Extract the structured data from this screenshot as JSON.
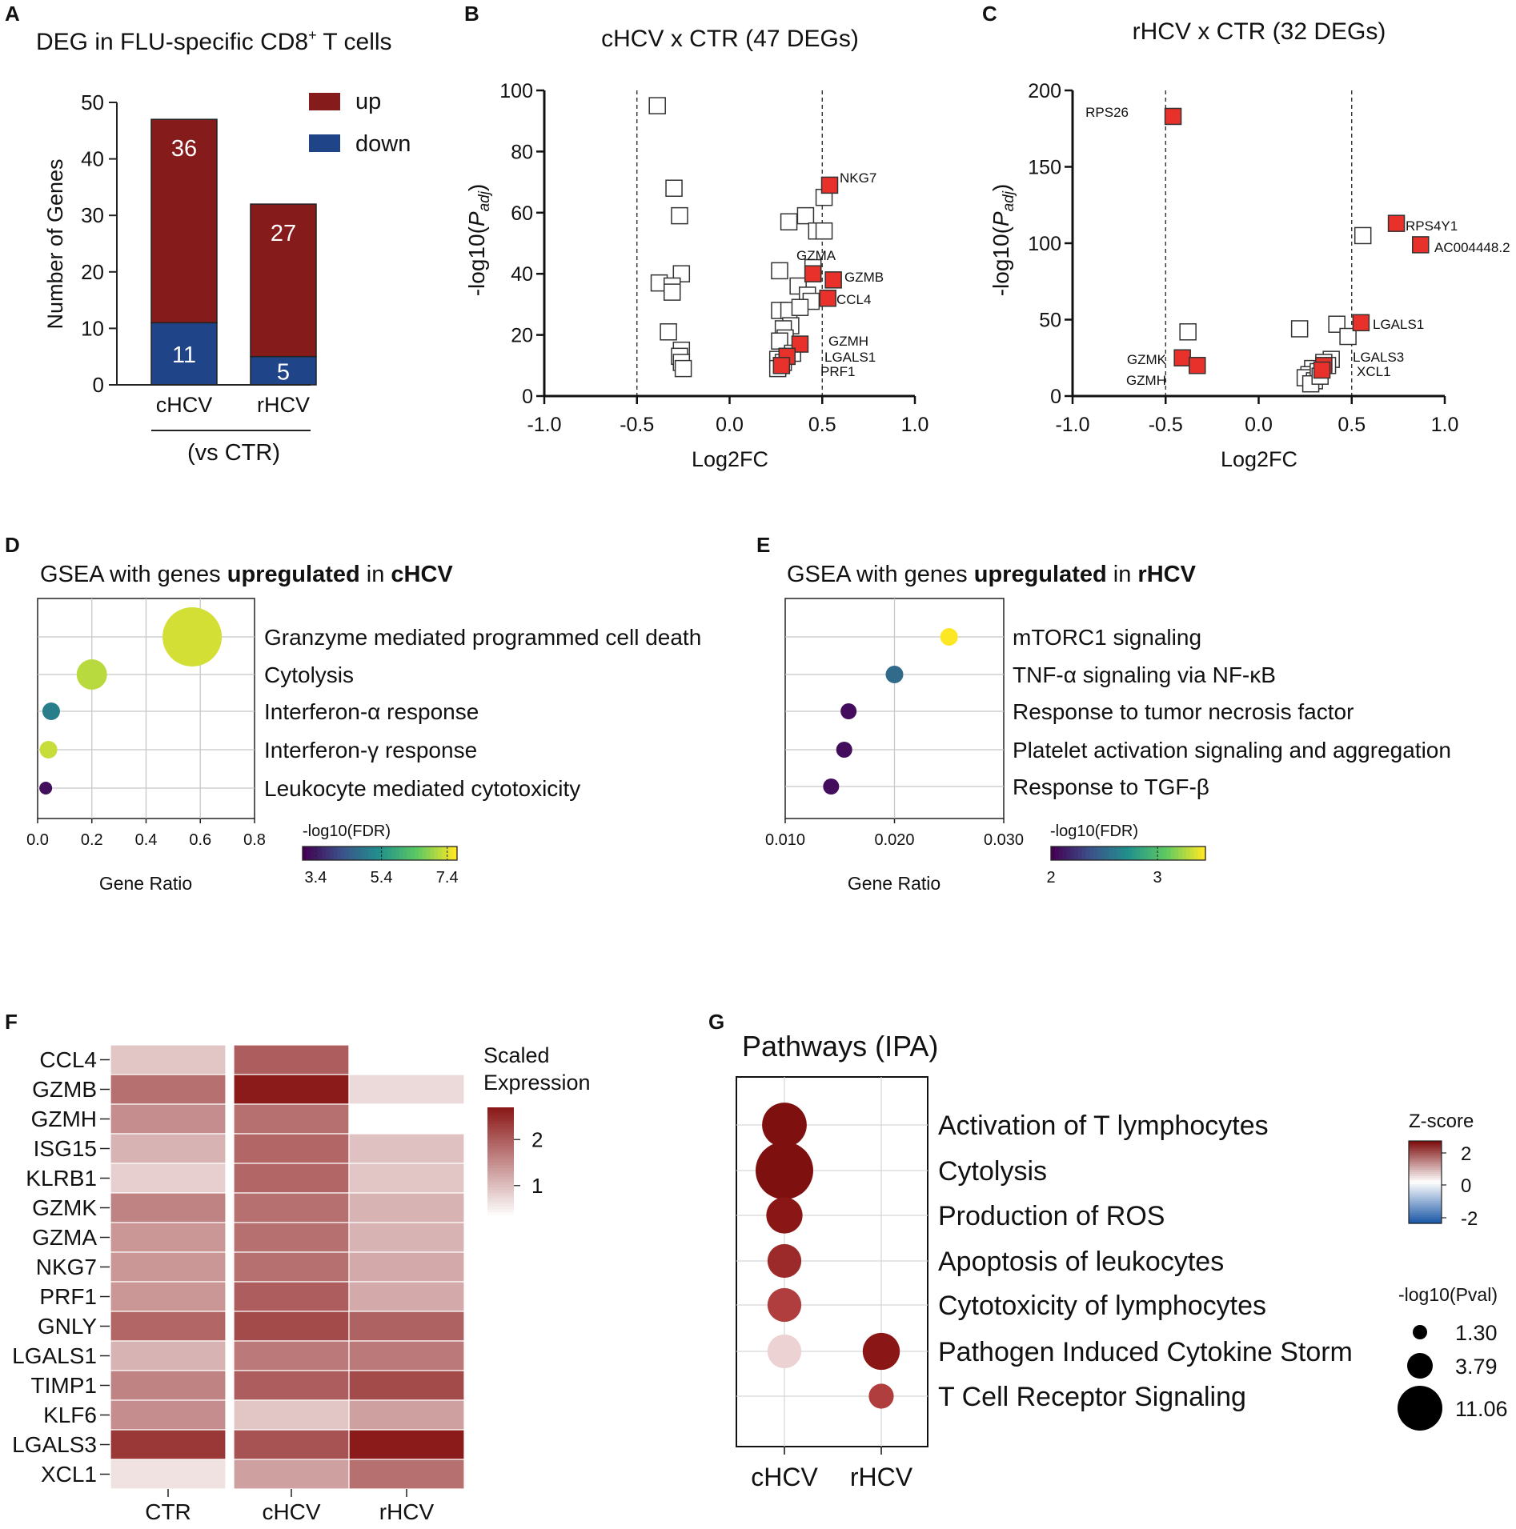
{
  "palette": {
    "up": "#861b1b",
    "down": "#1f4588",
    "highlight": "#e8312a",
    "ipa_high": "#7f1010",
    "ipa_mid": "#b03e3e",
    "ipa_light": "#ecd2d2",
    "ipa_low": "#1e5aa8",
    "heat_high": "#8b1a1a",
    "heat_low": "#ffffff"
  },
  "chart_data": [
    {
      "panel": "A",
      "type": "bar",
      "stacked": true,
      "title": "DEG in FLU-specific CD8",
      "title_sup": "+",
      "title_tail": " T cells",
      "ylabel": "Number of Genes",
      "xlabel": "(vs CTR)",
      "categories": [
        "cHCV",
        "rHCV"
      ],
      "series": [
        {
          "name": "down",
          "values": [
            11,
            5
          ]
        },
        {
          "name": "up",
          "values": [
            36,
            27
          ]
        }
      ],
      "ylim": [
        0,
        50
      ],
      "yticks": [
        "0",
        "10",
        "20",
        "30",
        "40",
        "50"
      ],
      "legend": [
        "up",
        "down"
      ]
    },
    {
      "panel": "B",
      "type": "scatter",
      "title": "cHCV x CTR (47 DEGs)",
      "xlabel": "Log2FC",
      "ylabel_main": "-log10(",
      "ylabel_p": "P",
      "ylabel_sub": "adj",
      "ylabel_end": ")",
      "xlim": [
        -1.0,
        1.0
      ],
      "ylim": [
        0,
        100
      ],
      "xticks": [
        "-1.0",
        "-0.5",
        "0.0",
        "0.5",
        "1.0"
      ],
      "yticks": [
        "0",
        "20",
        "40",
        "60",
        "80",
        "100"
      ],
      "thresholds": [
        -0.5,
        0.5
      ],
      "points": [
        [
          -0.39,
          95
        ],
        [
          -0.3,
          68
        ],
        [
          -0.27,
          59
        ],
        [
          -0.26,
          40
        ],
        [
          -0.38,
          37
        ],
        [
          -0.31,
          36
        ],
        [
          -0.31,
          34
        ],
        [
          -0.26,
          15
        ],
        [
          -0.27,
          13
        ],
        [
          -0.33,
          21
        ],
        [
          -0.26,
          11
        ],
        [
          -0.25,
          9
        ],
        [
          0.41,
          59
        ],
        [
          0.32,
          57
        ],
        [
          0.51,
          65
        ],
        [
          0.47,
          54
        ],
        [
          0.51,
          54
        ],
        [
          0.27,
          41
        ],
        [
          0.45,
          42
        ],
        [
          0.37,
          36
        ],
        [
          0.42,
          33
        ],
        [
          0.44,
          31
        ],
        [
          0.27,
          28
        ],
        [
          0.32,
          28
        ],
        [
          0.38,
          29
        ],
        [
          0.33,
          23
        ],
        [
          0.29,
          22
        ],
        [
          0.3,
          19
        ],
        [
          0.27,
          18
        ],
        [
          0.34,
          14
        ],
        [
          0.26,
          12
        ],
        [
          0.28,
          10
        ],
        [
          0.26,
          9
        ],
        [
          0.31,
          13
        ],
        [
          0.29,
          11
        ]
      ],
      "highlights": [
        {
          "x": 0.54,
          "y": 69,
          "label": "NKG7"
        },
        {
          "x": 0.45,
          "y": 40,
          "label": "GZMA"
        },
        {
          "x": 0.56,
          "y": 38,
          "label": "GZMB"
        },
        {
          "x": 0.53,
          "y": 32,
          "label": "CCL4"
        },
        {
          "x": 0.38,
          "y": 17,
          "label": "GZMH"
        },
        {
          "x": 0.31,
          "y": 13,
          "label": "LGALS1"
        },
        {
          "x": 0.28,
          "y": 10,
          "label": "PRF1"
        }
      ]
    },
    {
      "panel": "C",
      "type": "scatter",
      "title": "rHCV x CTR (32 DEGs)",
      "xlabel": "Log2FC",
      "ylabel_main": "-log10(",
      "ylabel_p": "P",
      "ylabel_sub": "adj",
      "ylabel_end": ")",
      "xlim": [
        -1.0,
        1.0
      ],
      "ylim": [
        0,
        200
      ],
      "xticks": [
        "-1.0",
        "-0.5",
        "0.0",
        "0.5",
        "1.0"
      ],
      "yticks": [
        "0",
        "50",
        "100",
        "150",
        "200"
      ],
      "thresholds": [
        -0.5,
        0.5
      ],
      "points": [
        [
          -0.38,
          42
        ],
        [
          0.56,
          105
        ],
        [
          0.22,
          44
        ],
        [
          0.42,
          47
        ],
        [
          0.48,
          39
        ],
        [
          0.39,
          24
        ],
        [
          0.37,
          20
        ],
        [
          0.29,
          18
        ],
        [
          0.27,
          14
        ],
        [
          0.25,
          12
        ],
        [
          0.3,
          10
        ],
        [
          0.32,
          16
        ],
        [
          0.35,
          22
        ],
        [
          0.28,
          8
        ],
        [
          0.33,
          13
        ]
      ],
      "highlights": [
        {
          "x": -0.46,
          "y": 183,
          "label": "RPS26"
        },
        {
          "x": 0.74,
          "y": 113,
          "label": "RPS4Y1"
        },
        {
          "x": 0.87,
          "y": 99,
          "label": "AC004448.2"
        },
        {
          "x": 0.55,
          "y": 48,
          "label": "LGALS1"
        },
        {
          "x": 0.35,
          "y": 20,
          "label": "LGALS3"
        },
        {
          "x": 0.34,
          "y": 17,
          "label": "XCL1"
        },
        {
          "x": -0.41,
          "y": 25,
          "label": "GZMK"
        },
        {
          "x": -0.33,
          "y": 20,
          "label": "GZMH"
        }
      ]
    },
    {
      "panel": "D",
      "type": "scatter",
      "subtype": "bubble",
      "title_pre": "GSEA with genes ",
      "title_bold1": "upregulated",
      "title_mid": " in ",
      "title_bold2": "cHCV",
      "xlabel": "Gene Ratio",
      "xlim": [
        0.0,
        0.8
      ],
      "xticks": [
        "0.0",
        "0.2",
        "0.4",
        "0.6",
        "0.8"
      ],
      "terms": [
        {
          "label": "Granzyme mediated programmed cell death",
          "x": 0.57,
          "size": 3,
          "fdr": 7.4
        },
        {
          "label": "Cytolysis",
          "x": 0.2,
          "size": 2,
          "fdr": 7.2
        },
        {
          "label": "Interferon-α response",
          "x": 0.05,
          "size": 1,
          "fdr": 5.0
        },
        {
          "label": "Interferon-γ response",
          "x": 0.04,
          "size": 1,
          "fdr": 7.3
        },
        {
          "label": "Leukocyte mediated cytotoxicity",
          "x": 0.03,
          "size": 0.8,
          "fdr": 3.2
        }
      ],
      "legend_title": "-log10(FDR)",
      "legend_range": [
        3.0,
        7.7
      ],
      "legend_ticks": [
        "3.4",
        "5.4",
        "7.4"
      ]
    },
    {
      "panel": "E",
      "type": "scatter",
      "subtype": "bubble",
      "title_pre": "GSEA with genes ",
      "title_bold1": "upregulated",
      "title_mid": " in ",
      "title_bold2": "rHCV",
      "xlabel": "Gene Ratio",
      "xlim": [
        0.01,
        0.03
      ],
      "xticks": [
        "0.010",
        "0.020",
        "0.030"
      ],
      "terms": [
        {
          "label": "mTORC1 signaling",
          "x": 0.025,
          "size": 1,
          "fdr": 3.45
        },
        {
          "label": "TNF-α signaling via NF-κB",
          "x": 0.02,
          "size": 1,
          "fdr": 2.5
        },
        {
          "label": "Response to tumor necrosis factor",
          "x": 0.0158,
          "size": 0.9,
          "fdr": 2.05
        },
        {
          "label": "Platelet activation signaling and aggregation",
          "x": 0.0154,
          "size": 0.9,
          "fdr": 2.05
        },
        {
          "label": "Response to TGF-β",
          "x": 0.0142,
          "size": 0.9,
          "fdr": 2.05
        }
      ],
      "legend_title": "-log10(FDR)",
      "legend_range": [
        2.0,
        3.45
      ],
      "legend_ticks": [
        "2",
        "3"
      ]
    },
    {
      "panel": "F",
      "type": "heatmap",
      "legend_title": [
        "Scaled",
        "Expression"
      ],
      "legend_range": [
        0.3,
        2.7
      ],
      "legend_ticks": [
        "2",
        "1"
      ],
      "columns": [
        "CTR",
        "cHCV",
        "rHCV"
      ],
      "rows": [
        "CCL4",
        "GZMB",
        "GZMH",
        "ISG15",
        "KLRB1",
        "GZMK",
        "GZMA",
        "NKG7",
        "PRF1",
        "GNLY",
        "LGALS1",
        "TIMP1",
        "KLF6",
        "LGALS3",
        "XCL1"
      ],
      "values": [
        [
          0.9,
          2.0,
          null
        ],
        [
          1.8,
          2.7,
          0.7
        ],
        [
          1.5,
          1.8,
          0.3
        ],
        [
          1.1,
          1.9,
          0.95
        ],
        [
          0.8,
          1.9,
          0.9
        ],
        [
          1.6,
          1.8,
          1.1
        ],
        [
          1.4,
          1.8,
          1.1
        ],
        [
          1.4,
          1.8,
          1.2
        ],
        [
          1.4,
          2.0,
          1.2
        ],
        [
          1.9,
          2.2,
          1.95
        ],
        [
          1.1,
          1.7,
          1.7
        ],
        [
          1.6,
          2.0,
          2.2
        ],
        [
          1.5,
          0.9,
          1.3
        ],
        [
          2.4,
          2.1,
          2.7
        ],
        [
          0.6,
          1.3,
          1.8
        ]
      ]
    },
    {
      "panel": "G",
      "type": "scatter",
      "subtype": "bubble",
      "title": "Pathways (IPA)",
      "columns": [
        "cHCV",
        "rHCV"
      ],
      "pathways": [
        "Activation of T lymphocytes",
        "Cytolysis",
        "Production of ROS",
        "Apoptosis of leukocytes",
        "Cytotoxicity of lymphocytes",
        "Pathogen Induced Cytokine Storm",
        "T Cell Receptor Signaling"
      ],
      "cells": [
        {
          "pathway": 0,
          "column": 0,
          "z": 2.7,
          "pval": 6.5
        },
        {
          "pathway": 1,
          "column": 0,
          "z": 2.8,
          "pval": 11.06
        },
        {
          "pathway": 2,
          "column": 0,
          "z": 2.6,
          "pval": 4.3
        },
        {
          "pathway": 3,
          "column": 0,
          "z": 2.4,
          "pval": 3.79
        },
        {
          "pathway": 4,
          "column": 0,
          "z": 2.1,
          "pval": 3.79
        },
        {
          "pathway": 5,
          "column": 0,
          "z": 0.4,
          "pval": 3.79
        },
        {
          "pathway": 5,
          "column": 1,
          "z": 2.6,
          "pval": 4.5
        },
        {
          "pathway": 6,
          "column": 1,
          "z": 2.2,
          "pval": 2.3
        }
      ],
      "legend_color_title": "Z-score",
      "legend_color_ticks": [
        "2",
        "0",
        "-2"
      ],
      "legend_size_title": "-log10(Pval)",
      "legend_size_values": [
        "1.30",
        "3.79",
        "11.06"
      ]
    }
  ],
  "panel_letters": [
    "A",
    "B",
    "C",
    "D",
    "E",
    "F",
    "G"
  ]
}
